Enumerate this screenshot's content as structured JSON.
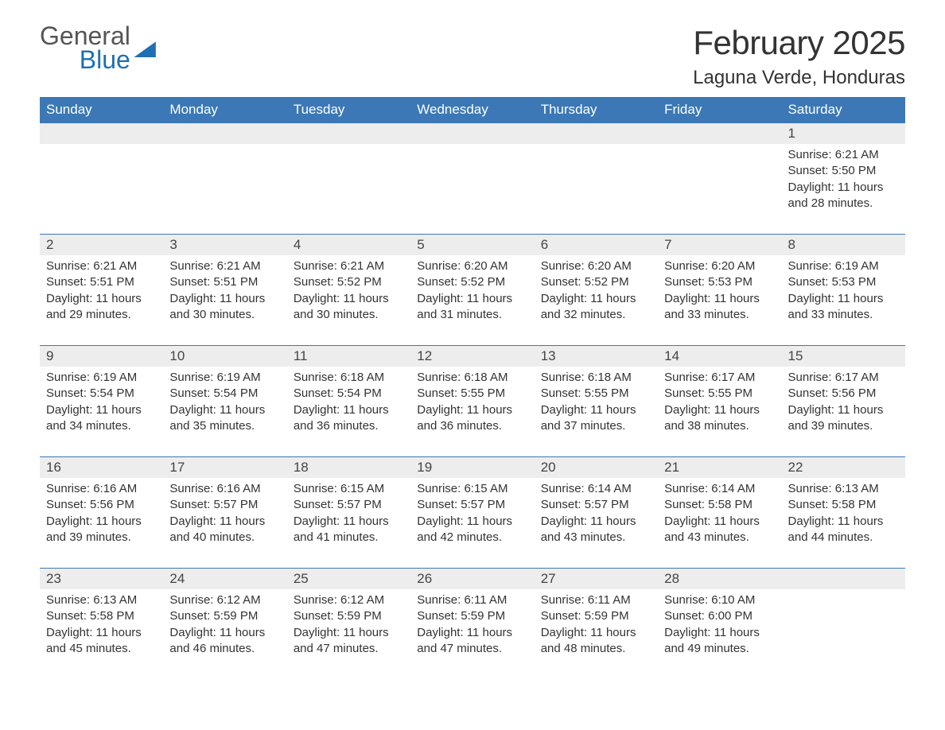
{
  "logo": {
    "line1": "General",
    "line2": "Blue"
  },
  "title": "February 2025",
  "location": "Laguna Verde, Honduras",
  "colors": {
    "header_bg": "#3b78b5",
    "header_text": "#ffffff",
    "daynum_bg": "#ededed",
    "rule": "#3b78b5",
    "body_text": "#333333",
    "logo_blue": "#1f6fb2"
  },
  "weekdays": [
    "Sunday",
    "Monday",
    "Tuesday",
    "Wednesday",
    "Thursday",
    "Friday",
    "Saturday"
  ],
  "weeks": [
    [
      null,
      null,
      null,
      null,
      null,
      null,
      {
        "n": "1",
        "sunrise": "Sunrise: 6:21 AM",
        "sunset": "Sunset: 5:50 PM",
        "daylight": "Daylight: 11 hours and 28 minutes."
      }
    ],
    [
      {
        "n": "2",
        "sunrise": "Sunrise: 6:21 AM",
        "sunset": "Sunset: 5:51 PM",
        "daylight": "Daylight: 11 hours and 29 minutes."
      },
      {
        "n": "3",
        "sunrise": "Sunrise: 6:21 AM",
        "sunset": "Sunset: 5:51 PM",
        "daylight": "Daylight: 11 hours and 30 minutes."
      },
      {
        "n": "4",
        "sunrise": "Sunrise: 6:21 AM",
        "sunset": "Sunset: 5:52 PM",
        "daylight": "Daylight: 11 hours and 30 minutes."
      },
      {
        "n": "5",
        "sunrise": "Sunrise: 6:20 AM",
        "sunset": "Sunset: 5:52 PM",
        "daylight": "Daylight: 11 hours and 31 minutes."
      },
      {
        "n": "6",
        "sunrise": "Sunrise: 6:20 AM",
        "sunset": "Sunset: 5:52 PM",
        "daylight": "Daylight: 11 hours and 32 minutes."
      },
      {
        "n": "7",
        "sunrise": "Sunrise: 6:20 AM",
        "sunset": "Sunset: 5:53 PM",
        "daylight": "Daylight: 11 hours and 33 minutes."
      },
      {
        "n": "8",
        "sunrise": "Sunrise: 6:19 AM",
        "sunset": "Sunset: 5:53 PM",
        "daylight": "Daylight: 11 hours and 33 minutes."
      }
    ],
    [
      {
        "n": "9",
        "sunrise": "Sunrise: 6:19 AM",
        "sunset": "Sunset: 5:54 PM",
        "daylight": "Daylight: 11 hours and 34 minutes."
      },
      {
        "n": "10",
        "sunrise": "Sunrise: 6:19 AM",
        "sunset": "Sunset: 5:54 PM",
        "daylight": "Daylight: 11 hours and 35 minutes."
      },
      {
        "n": "11",
        "sunrise": "Sunrise: 6:18 AM",
        "sunset": "Sunset: 5:54 PM",
        "daylight": "Daylight: 11 hours and 36 minutes."
      },
      {
        "n": "12",
        "sunrise": "Sunrise: 6:18 AM",
        "sunset": "Sunset: 5:55 PM",
        "daylight": "Daylight: 11 hours and 36 minutes."
      },
      {
        "n": "13",
        "sunrise": "Sunrise: 6:18 AM",
        "sunset": "Sunset: 5:55 PM",
        "daylight": "Daylight: 11 hours and 37 minutes."
      },
      {
        "n": "14",
        "sunrise": "Sunrise: 6:17 AM",
        "sunset": "Sunset: 5:55 PM",
        "daylight": "Daylight: 11 hours and 38 minutes."
      },
      {
        "n": "15",
        "sunrise": "Sunrise: 6:17 AM",
        "sunset": "Sunset: 5:56 PM",
        "daylight": "Daylight: 11 hours and 39 minutes."
      }
    ],
    [
      {
        "n": "16",
        "sunrise": "Sunrise: 6:16 AM",
        "sunset": "Sunset: 5:56 PM",
        "daylight": "Daylight: 11 hours and 39 minutes."
      },
      {
        "n": "17",
        "sunrise": "Sunrise: 6:16 AM",
        "sunset": "Sunset: 5:57 PM",
        "daylight": "Daylight: 11 hours and 40 minutes."
      },
      {
        "n": "18",
        "sunrise": "Sunrise: 6:15 AM",
        "sunset": "Sunset: 5:57 PM",
        "daylight": "Daylight: 11 hours and 41 minutes."
      },
      {
        "n": "19",
        "sunrise": "Sunrise: 6:15 AM",
        "sunset": "Sunset: 5:57 PM",
        "daylight": "Daylight: 11 hours and 42 minutes."
      },
      {
        "n": "20",
        "sunrise": "Sunrise: 6:14 AM",
        "sunset": "Sunset: 5:57 PM",
        "daylight": "Daylight: 11 hours and 43 minutes."
      },
      {
        "n": "21",
        "sunrise": "Sunrise: 6:14 AM",
        "sunset": "Sunset: 5:58 PM",
        "daylight": "Daylight: 11 hours and 43 minutes."
      },
      {
        "n": "22",
        "sunrise": "Sunrise: 6:13 AM",
        "sunset": "Sunset: 5:58 PM",
        "daylight": "Daylight: 11 hours and 44 minutes."
      }
    ],
    [
      {
        "n": "23",
        "sunrise": "Sunrise: 6:13 AM",
        "sunset": "Sunset: 5:58 PM",
        "daylight": "Daylight: 11 hours and 45 minutes."
      },
      {
        "n": "24",
        "sunrise": "Sunrise: 6:12 AM",
        "sunset": "Sunset: 5:59 PM",
        "daylight": "Daylight: 11 hours and 46 minutes."
      },
      {
        "n": "25",
        "sunrise": "Sunrise: 6:12 AM",
        "sunset": "Sunset: 5:59 PM",
        "daylight": "Daylight: 11 hours and 47 minutes."
      },
      {
        "n": "26",
        "sunrise": "Sunrise: 6:11 AM",
        "sunset": "Sunset: 5:59 PM",
        "daylight": "Daylight: 11 hours and 47 minutes."
      },
      {
        "n": "27",
        "sunrise": "Sunrise: 6:11 AM",
        "sunset": "Sunset: 5:59 PM",
        "daylight": "Daylight: 11 hours and 48 minutes."
      },
      {
        "n": "28",
        "sunrise": "Sunrise: 6:10 AM",
        "sunset": "Sunset: 6:00 PM",
        "daylight": "Daylight: 11 hours and 49 minutes."
      },
      null
    ]
  ]
}
